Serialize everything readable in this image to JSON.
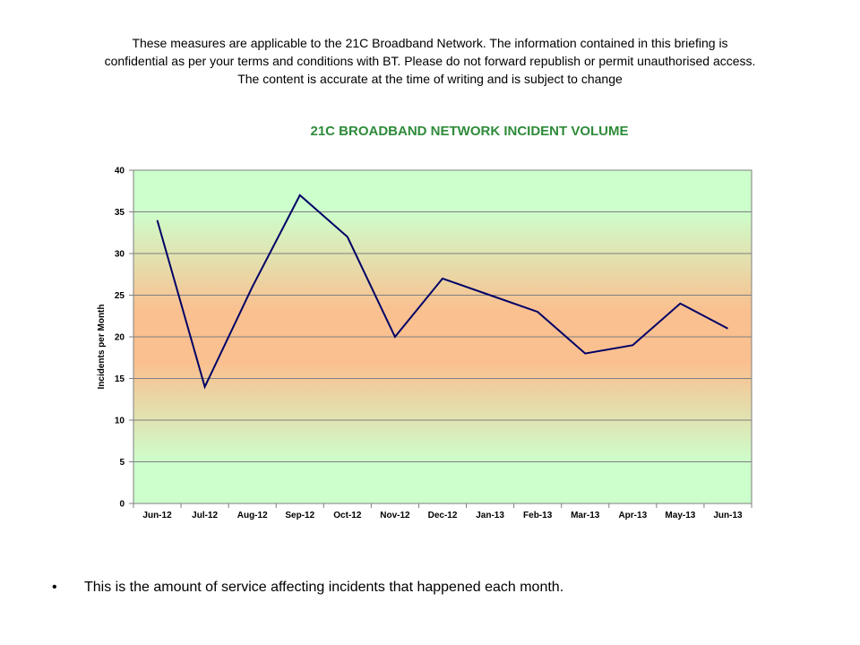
{
  "disclaimer": {
    "line1": "These measures are applicable to the 21C Broadband Network.  The information contained in this briefing is",
    "line2": "confidential as per your terms and conditions with BT.  Please do not forward republish or permit unauthorised access.",
    "line3": "The content is accurate at the time of writing and is subject to change"
  },
  "bullet": {
    "mark": "•",
    "text": "This is the amount of service affecting incidents that happened each month."
  },
  "colors": {
    "title": "#2e8b3a",
    "line": "#000066",
    "grid": "#7f7f7f",
    "bg_top": "#ccffcc",
    "bg_mid": "#fac090"
  },
  "chart_data": {
    "type": "line",
    "title": "21C BROADBAND NETWORK INCIDENT VOLUME",
    "xlabel": "",
    "ylabel": "Incidents per Month",
    "categories": [
      "Jun-12",
      "Jul-12",
      "Aug-12",
      "Sep-12",
      "Oct-12",
      "Nov-12",
      "Dec-12",
      "Jan-13",
      "Feb-13",
      "Mar-13",
      "Apr-13",
      "May-13",
      "Jun-13"
    ],
    "series": [
      {
        "values": [
          34,
          14,
          26,
          37,
          32,
          20,
          27,
          25,
          23,
          18,
          19,
          24,
          21
        ]
      }
    ],
    "ylim": [
      0,
      40
    ],
    "yticks": [
      "0",
      "5",
      "10",
      "15",
      "20",
      "25",
      "30",
      "35",
      "40"
    ],
    "grid": true,
    "legend": "none"
  }
}
